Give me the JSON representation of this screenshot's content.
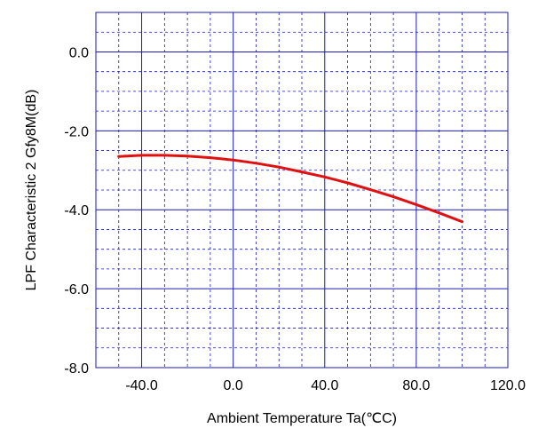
{
  "chart_data": {
    "type": "line",
    "title": "",
    "xlabel": "Ambient Temperature  Ta(℃C)",
    "ylabel": "LPF Characteristic 2  Gfy8M(dB)",
    "xlim": [
      -60,
      120
    ],
    "ylim": [
      -8,
      1
    ],
    "x_ticks": [
      -40,
      0,
      40,
      80,
      120
    ],
    "x_tick_labels": [
      "-40.0",
      "0.0",
      "40.0",
      "80.0",
      "120.0"
    ],
    "y_ticks": [
      0,
      -2,
      -4,
      -6,
      -8
    ],
    "y_tick_labels": [
      "0.0",
      "-2.0",
      "-4.0",
      "-6.0",
      "-8.0"
    ],
    "grid": true,
    "series": [
      {
        "x": [
          -50,
          -40,
          -30,
          -20,
          -10,
          0,
          10,
          20,
          30,
          40,
          50,
          60,
          70,
          80,
          90,
          100
        ],
        "y": [
          -2.65,
          -2.62,
          -2.62,
          -2.64,
          -2.68,
          -2.74,
          -2.82,
          -2.92,
          -3.04,
          -3.17,
          -3.32,
          -3.49,
          -3.67,
          -3.87,
          -4.08,
          -4.3
        ]
      }
    ],
    "colors": {
      "line": "#e01010",
      "axis": "#1a1ab8",
      "grid_minor": "#1a1ab8"
    }
  }
}
